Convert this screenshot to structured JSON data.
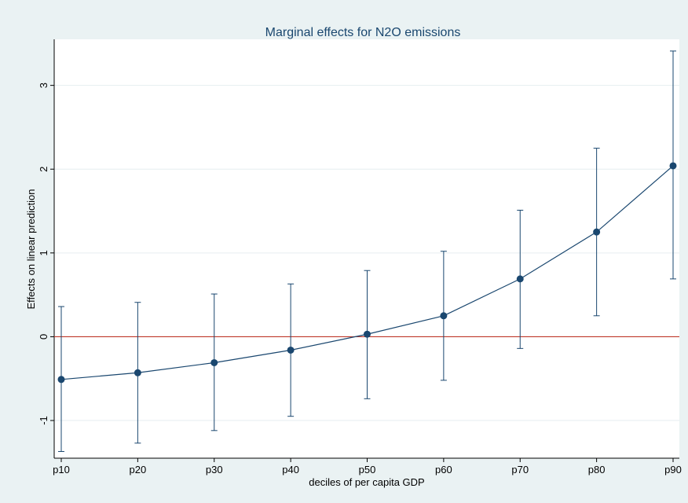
{
  "chart_data": {
    "type": "line",
    "title": "Marginal effects for N2O emissions",
    "xlabel": "deciles of per capita GDP",
    "ylabel": "Effects on linear prediction",
    "categories": [
      "p10",
      "p20",
      "p30",
      "p40",
      "p50",
      "p60",
      "p70",
      "p80",
      "p90"
    ],
    "series": [
      {
        "values": [
          -0.51,
          -0.43,
          -0.31,
          -0.16,
          0.03,
          0.25,
          0.69,
          1.25,
          2.04
        ],
        "ci_low": [
          -1.37,
          -1.27,
          -1.12,
          -0.95,
          -0.74,
          -0.52,
          -0.14,
          0.25,
          0.69
        ],
        "ci_high": [
          0.36,
          0.41,
          0.51,
          0.63,
          0.79,
          1.02,
          1.51,
          2.25,
          3.41
        ]
      }
    ],
    "yticks": [
      -1,
      0,
      1,
      2,
      3
    ],
    "ylim": [
      -1.45,
      3.55
    ],
    "reference_line": 0,
    "grid": true,
    "colors": {
      "background": "#eaf2f3",
      "plot_area": "#ffffff",
      "line": "#1a476f",
      "reference": "#c0392b",
      "grid": "#e6eef0",
      "title": "#1a476f"
    }
  }
}
